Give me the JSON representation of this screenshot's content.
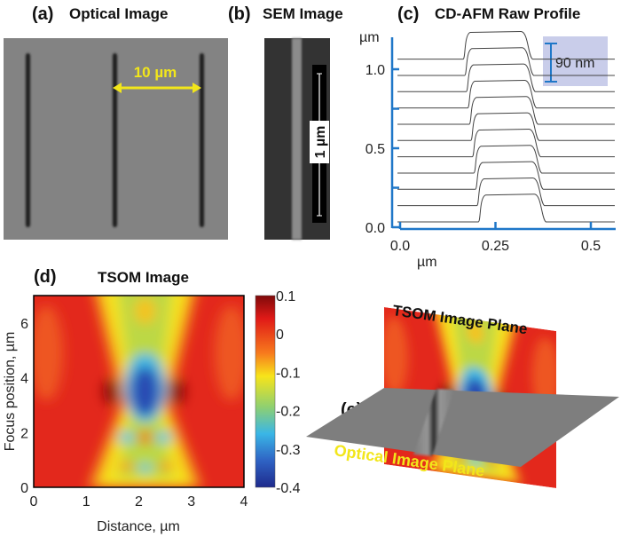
{
  "panels": {
    "a": {
      "letter": "(a)",
      "title": "Optical Image",
      "scale_label": "10 µm"
    },
    "b": {
      "letter": "(b)",
      "title": "SEM Image",
      "scale_label": "1 µm"
    },
    "c": {
      "letter": "(c)",
      "title": "CD-AFM Raw Profile",
      "inset_label": "90 nm"
    },
    "d": {
      "letter": "(d)",
      "title": "TSOM Image"
    },
    "e": {
      "letter": "(e)",
      "tsom_plane_label": "TSOM Image Plane",
      "optical_plane_label": "Optical Image Plane"
    }
  },
  "colors": {
    "axis": "#1f77c8",
    "inset": "#c9cdea",
    "label_yellow": "#f2e61a",
    "trace": "#444444"
  },
  "chart_data": [
    {
      "type": "line",
      "title": "CD-AFM Raw Profile",
      "xlabel": "µm",
      "ylabel": "µm",
      "xlim": [
        0,
        0.56
      ],
      "ylim": [
        0,
        1.2
      ],
      "xticks": [
        "0.0",
        "0.25",
        "0.5"
      ],
      "xtick_values": [
        0,
        0.25,
        0.5
      ],
      "yticks": [
        "0.0",
        "0.5",
        "1.0"
      ],
      "ytick_values": [
        0,
        0.5,
        1.0
      ],
      "step_height": 0.175,
      "series": [
        {
          "offset": 0.034,
          "rise": 0.205,
          "fall": 0.375
        },
        {
          "offset": 0.137,
          "rise": 0.201,
          "fall": 0.371
        },
        {
          "offset": 0.24,
          "rise": 0.197,
          "fall": 0.368
        },
        {
          "offset": 0.343,
          "rise": 0.193,
          "fall": 0.364
        },
        {
          "offset": 0.446,
          "rise": 0.189,
          "fall": 0.361
        },
        {
          "offset": 0.549,
          "rise": 0.185,
          "fall": 0.357
        },
        {
          "offset": 0.652,
          "rise": 0.181,
          "fall": 0.354
        },
        {
          "offset": 0.755,
          "rise": 0.177,
          "fall": 0.35
        },
        {
          "offset": 0.858,
          "rise": 0.173,
          "fall": 0.347
        },
        {
          "offset": 0.961,
          "rise": 0.169,
          "fall": 0.343
        },
        {
          "offset": 1.064,
          "rise": 0.165,
          "fall": 0.34
        }
      ]
    },
    {
      "type": "heatmap",
      "title": "TSOM Image",
      "xlabel": "Distance, µm",
      "ylabel": "Focus position, µm",
      "xlim": [
        0,
        4
      ],
      "ylim": [
        0,
        7
      ],
      "xticks": [
        "0",
        "1",
        "2",
        "3",
        "4"
      ],
      "yticks": [
        "0",
        "2",
        "4",
        "6"
      ],
      "colorbar": {
        "range": [
          -0.4,
          0.1
        ],
        "ticks": [
          "0.1",
          "0",
          "-0.1",
          "-0.2",
          "-0.3",
          "-0.4"
        ],
        "colormap": "jet"
      }
    }
  ]
}
